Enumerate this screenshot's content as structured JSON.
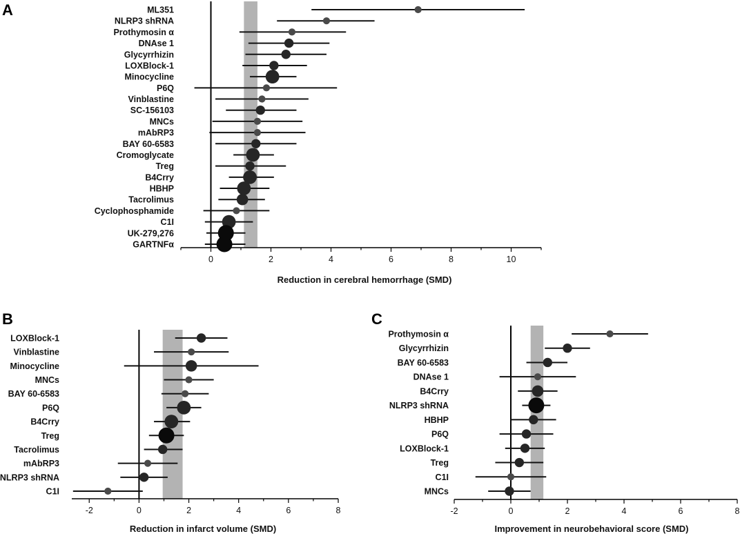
{
  "chart_data": [
    {
      "type": "forest",
      "panel": "A",
      "xlabel": "Reduction in cerebral hemorrhage (SMD)",
      "xlim": [
        -1,
        11
      ],
      "xticks": [
        0,
        2,
        4,
        6,
        8,
        10
      ],
      "pooled_band": [
        1.1,
        1.55
      ],
      "reference_line": 0,
      "rows": [
        {
          "label": "ML351",
          "est": 6.9,
          "lo": 3.35,
          "hi": 10.45,
          "weight": 1
        },
        {
          "label": "NLRP3 shRNA",
          "est": 3.85,
          "lo": 2.2,
          "hi": 5.45,
          "weight": 1
        },
        {
          "label": "Prothymosin α",
          "est": 2.7,
          "lo": 0.95,
          "hi": 4.5,
          "weight": 1
        },
        {
          "label": "DNAse 1",
          "est": 2.6,
          "lo": 1.25,
          "hi": 3.95,
          "weight": 2
        },
        {
          "label": "Glycyrrhizin",
          "est": 2.5,
          "lo": 1.15,
          "hi": 3.85,
          "weight": 2
        },
        {
          "label": "LOXBlock-1",
          "est": 2.1,
          "lo": 1.05,
          "hi": 3.2,
          "weight": 2
        },
        {
          "label": "Minocycline",
          "est": 2.05,
          "lo": 1.3,
          "hi": 2.85,
          "weight": 4
        },
        {
          "label": "P6Q",
          "est": 1.85,
          "lo": -0.55,
          "hi": 4.2,
          "weight": 1
        },
        {
          "label": "Vinblastine",
          "est": 1.7,
          "lo": 0.15,
          "hi": 3.25,
          "weight": 1
        },
        {
          "label": "SC-156103",
          "est": 1.65,
          "lo": 0.5,
          "hi": 2.85,
          "weight": 2
        },
        {
          "label": "MNCs",
          "est": 1.55,
          "lo": 0.05,
          "hi": 3.05,
          "weight": 1
        },
        {
          "label": "mAbRP3",
          "est": 1.55,
          "lo": -0.05,
          "hi": 3.15,
          "weight": 1
        },
        {
          "label": "BAY 60-6583",
          "est": 1.5,
          "lo": 0.15,
          "hi": 2.85,
          "weight": 2
        },
        {
          "label": "Cromoglycate",
          "est": 1.4,
          "lo": 0.75,
          "hi": 2.1,
          "weight": 4
        },
        {
          "label": "Treg",
          "est": 1.3,
          "lo": 0.15,
          "hi": 2.5,
          "weight": 2
        },
        {
          "label": "B4Crry",
          "est": 1.3,
          "lo": 0.6,
          "hi": 2.1,
          "weight": 4
        },
        {
          "label": "HBHP",
          "est": 1.1,
          "lo": 0.3,
          "hi": 1.95,
          "weight": 4
        },
        {
          "label": "Tacrolimus",
          "est": 1.05,
          "lo": 0.25,
          "hi": 1.8,
          "weight": 3
        },
        {
          "label": "Cyclophosphamide",
          "est": 0.85,
          "lo": -0.25,
          "hi": 1.95,
          "weight": 1
        },
        {
          "label": "C1I",
          "est": 0.6,
          "lo": -0.2,
          "hi": 1.4,
          "weight": 4
        },
        {
          "label": "UK-279,276",
          "est": 0.5,
          "lo": -0.15,
          "hi": 1.15,
          "weight": 5
        },
        {
          "label": "GARTNFα",
          "est": 0.45,
          "lo": -0.2,
          "hi": 1.15,
          "weight": 5
        }
      ]
    },
    {
      "type": "forest",
      "panel": "B",
      "xlabel": "Reduction in infarct volume (SMD)",
      "xlim": [
        -2.7,
        8
      ],
      "xticks": [
        -2,
        0,
        2,
        4,
        6,
        8
      ],
      "pooled_band": [
        0.95,
        1.75
      ],
      "reference_line": 0,
      "rows": [
        {
          "label": "LOXBlock-1",
          "est": 2.5,
          "lo": 1.45,
          "hi": 3.55,
          "weight": 2
        },
        {
          "label": "Vinblastine",
          "est": 2.1,
          "lo": 0.6,
          "hi": 3.6,
          "weight": 1
        },
        {
          "label": "Minocycline",
          "est": 2.1,
          "lo": -0.6,
          "hi": 4.8,
          "weight": 3
        },
        {
          "label": "MNCs",
          "est": 2.0,
          "lo": 1.0,
          "hi": 3.0,
          "weight": 1
        },
        {
          "label": "BAY 60-6583",
          "est": 1.85,
          "lo": 0.9,
          "hi": 2.8,
          "weight": 1
        },
        {
          "label": "P6Q",
          "est": 1.8,
          "lo": 1.1,
          "hi": 2.5,
          "weight": 4
        },
        {
          "label": "B4Crry",
          "est": 1.3,
          "lo": 0.6,
          "hi": 2.05,
          "weight": 4
        },
        {
          "label": "Treg",
          "est": 1.1,
          "lo": 0.4,
          "hi": 1.8,
          "weight": 5
        },
        {
          "label": "Tacrolimus",
          "est": 0.95,
          "lo": 0.2,
          "hi": 1.75,
          "weight": 2
        },
        {
          "label": "mAbRP3",
          "est": 0.35,
          "lo": -0.85,
          "hi": 1.55,
          "weight": 1
        },
        {
          "label": "NLRP3 shRNA",
          "est": 0.2,
          "lo": -0.75,
          "hi": 1.15,
          "weight": 2
        },
        {
          "label": "C1I",
          "est": -1.25,
          "lo": -2.65,
          "hi": 0.15,
          "weight": 1
        }
      ]
    },
    {
      "type": "forest",
      "panel": "C",
      "xlabel": "Improvement in neurobehavioral score (SMD)",
      "xlim": [
        -2,
        8
      ],
      "xticks": [
        -2,
        0,
        2,
        4,
        6,
        8
      ],
      "pooled_band": [
        0.7,
        1.15
      ],
      "reference_line": 0,
      "rows": [
        {
          "label": "Prothymosin α",
          "est": 3.5,
          "lo": 2.15,
          "hi": 4.85,
          "weight": 1
        },
        {
          "label": "Glycyrrhizin",
          "est": 2.0,
          "lo": 1.2,
          "hi": 2.8,
          "weight": 2
        },
        {
          "label": "BAY 60-6583",
          "est": 1.3,
          "lo": 0.55,
          "hi": 2.0,
          "weight": 2
        },
        {
          "label": "DNAse 1",
          "est": 0.95,
          "lo": -0.4,
          "hi": 2.3,
          "weight": 1
        },
        {
          "label": "B4Crry",
          "est": 0.95,
          "lo": 0.25,
          "hi": 1.65,
          "weight": 3
        },
        {
          "label": "NLRP3 shRNA",
          "est": 0.9,
          "lo": 0.4,
          "hi": 1.4,
          "weight": 5
        },
        {
          "label": "HBHP",
          "est": 0.8,
          "lo": 0.0,
          "hi": 1.6,
          "weight": 2
        },
        {
          "label": "P6Q",
          "est": 0.55,
          "lo": -0.4,
          "hi": 1.5,
          "weight": 2
        },
        {
          "label": "LOXBlock-1",
          "est": 0.5,
          "lo": -0.2,
          "hi": 1.2,
          "weight": 2
        },
        {
          "label": "Treg",
          "est": 0.3,
          "lo": -0.55,
          "hi": 1.15,
          "weight": 2
        },
        {
          "label": "C1I",
          "est": 0.0,
          "lo": -1.25,
          "hi": 1.25,
          "weight": 1
        },
        {
          "label": "MNCs",
          "est": -0.05,
          "lo": -0.8,
          "hi": 0.7,
          "weight": 2
        }
      ]
    }
  ],
  "colors": {
    "ci_line": "#111111",
    "band": "#b3b3b3",
    "axis": "#000000",
    "point_dark": "#0a0a0a",
    "point_light": "#4a4a4a"
  }
}
